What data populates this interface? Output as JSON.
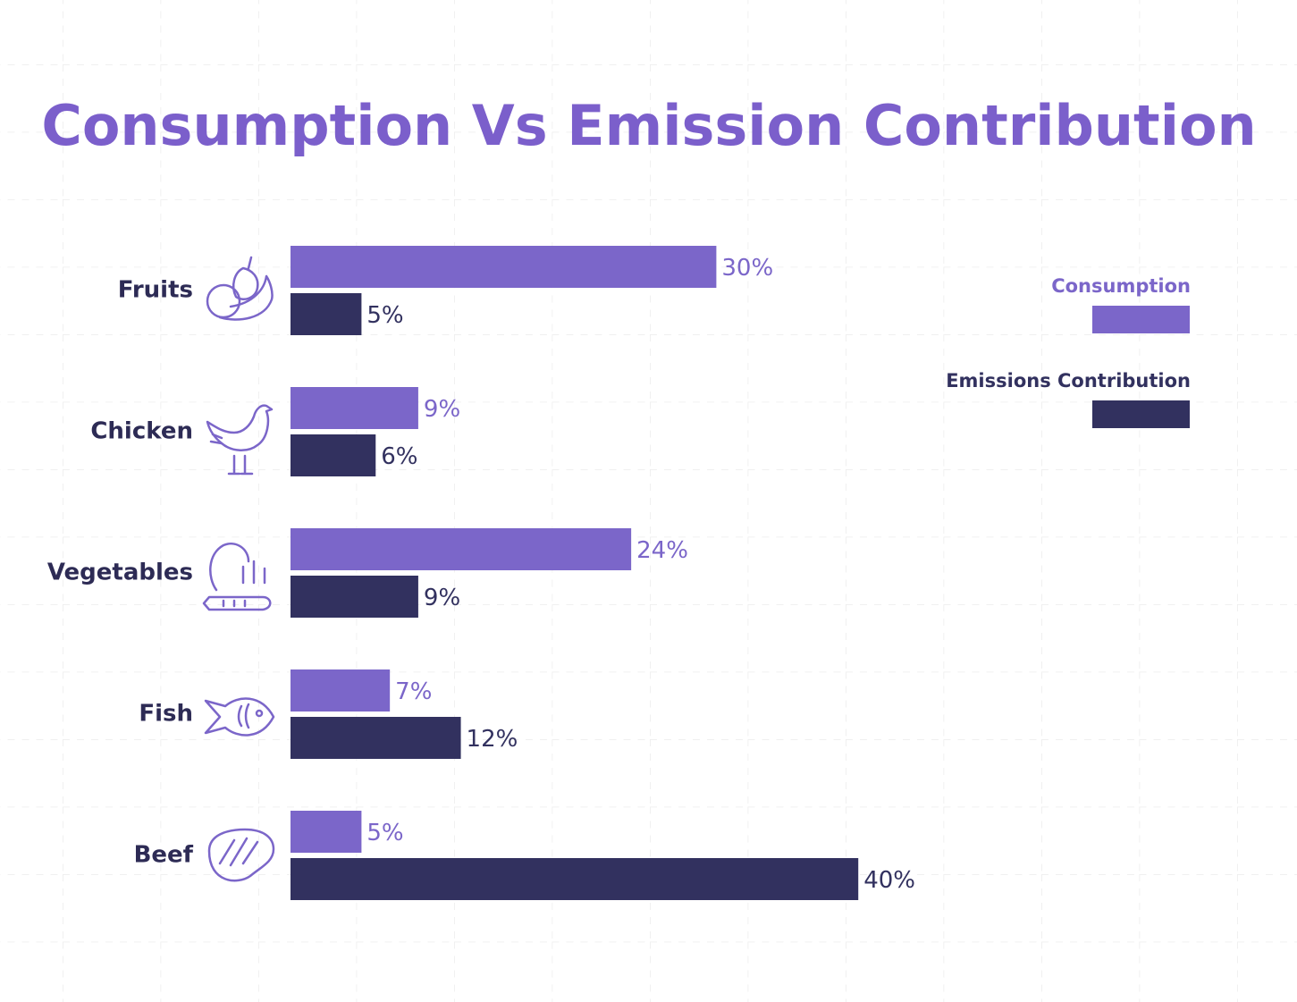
{
  "chart_data": {
    "type": "bar",
    "orientation": "horizontal",
    "title": "Consumption Vs Emission Contribution",
    "categories": [
      "Fruits",
      "Chicken",
      "Vegetables",
      "Fish",
      "Beef"
    ],
    "series": [
      {
        "name": "Consumption",
        "color": "#7b66c9",
        "values": [
          30,
          9,
          24,
          7,
          5
        ],
        "value_labels": [
          "30%",
          "9%",
          "24%",
          "7%",
          "5%"
        ]
      },
      {
        "name": "Emissions Contribution",
        "color": "#32315f",
        "values": [
          5,
          6,
          9,
          12,
          40
        ],
        "value_labels": [
          "5%",
          "6%",
          "9%",
          "12%",
          "40%"
        ]
      }
    ],
    "legend": "upper right"
  }
}
